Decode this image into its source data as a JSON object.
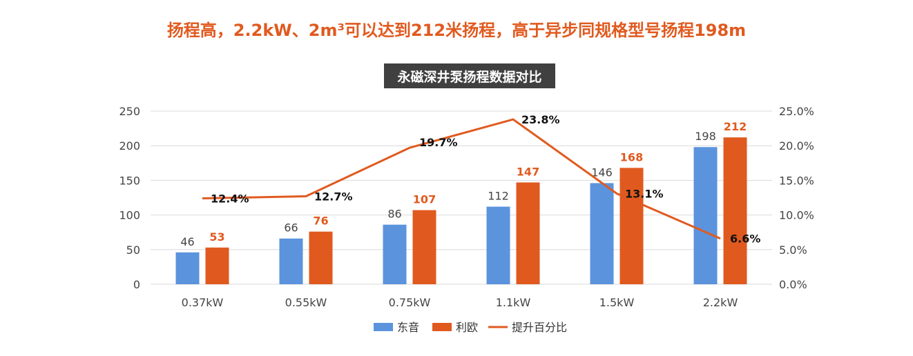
{
  "headline": "扬程高，2.2kW、2m³可以达到212米扬程，高于异步同规格型号扬程198m",
  "colors": {
    "series_a": "#5b93dd",
    "series_b": "#e05a1f",
    "line": "#e05a1f",
    "title_bg": "#404040",
    "grid": "#d9d9d9"
  },
  "chart_data": {
    "type": "bar",
    "title": "永磁深井泵扬程数据对比",
    "categories": [
      "0.37kW",
      "0.55kW",
      "0.75kW",
      "1.1kW",
      "1.5kW",
      "2.2kW"
    ],
    "series": [
      {
        "name": "东音",
        "type": "bar",
        "axis": "left",
        "values": [
          46,
          66,
          86,
          112,
          146,
          198
        ]
      },
      {
        "name": "利欧",
        "type": "bar",
        "axis": "left",
        "values": [
          53,
          76,
          107,
          147,
          168,
          212
        ]
      },
      {
        "name": "提升百分比",
        "type": "line",
        "axis": "right",
        "values": [
          12.4,
          12.7,
          19.7,
          23.8,
          13.1,
          6.6
        ],
        "labels": [
          "12.4%",
          "12.7%",
          "19.7%",
          "23.8%",
          "13.1%",
          "6.6%"
        ]
      }
    ],
    "ylim": [
      0,
      250
    ],
    "yticks": [
      "0",
      "50",
      "100",
      "150",
      "200",
      "250"
    ],
    "y2lim": [
      0,
      25
    ],
    "y2ticks": [
      "0.0%",
      "5.0%",
      "10.0%",
      "15.0%",
      "20.0%",
      "25.0%"
    ],
    "grid": true,
    "legend": "bottom"
  }
}
